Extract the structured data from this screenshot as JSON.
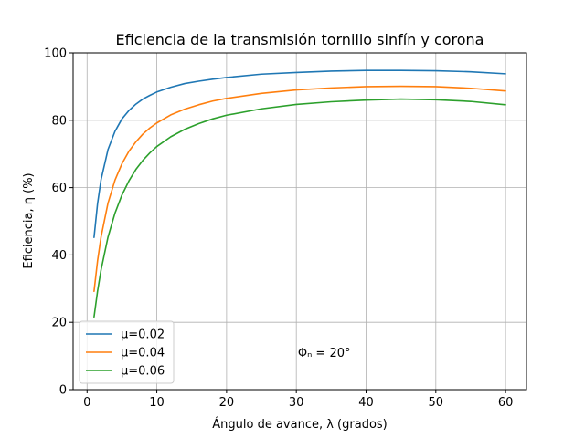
{
  "chart_data": {
    "type": "line",
    "title": "Eficiencia de la transmisión tornillo sinfín y corona",
    "xlabel": "Ángulo de avance, λ (grados)",
    "ylabel": "Eficiencia, η (%)",
    "xlim": [
      -2.0,
      63.0
    ],
    "ylim": [
      0,
      100
    ],
    "xticks": [
      0,
      10,
      20,
      30,
      40,
      50,
      60
    ],
    "yticks": [
      0,
      20,
      40,
      60,
      80,
      100
    ],
    "grid": true,
    "legend_position": "lower-left",
    "annotation": {
      "text": "Φₙ = 20°",
      "x": 34,
      "y": 11
    },
    "x": [
      1,
      1.5,
      2,
      3,
      4,
      5,
      6,
      7,
      8,
      9,
      10,
      12,
      14,
      16,
      18,
      20,
      25,
      30,
      35,
      40,
      45,
      50,
      55,
      60
    ],
    "series": [
      {
        "name": "μ=0.02",
        "color": "#1f77b4",
        "values": [
          45.2,
          55.2,
          62.3,
          71.3,
          76.7,
          80.4,
          82.9,
          84.8,
          86.3,
          87.4,
          88.4,
          89.8,
          90.9,
          91.6,
          92.2,
          92.7,
          93.7,
          94.2,
          94.6,
          94.8,
          94.8,
          94.7,
          94.4,
          93.8
        ]
      },
      {
        "name": "μ=0.04",
        "color": "#ff7f0e",
        "values": [
          29.2,
          38.2,
          45.3,
          55.4,
          62.2,
          67.1,
          70.8,
          73.6,
          75.9,
          77.7,
          79.2,
          81.6,
          83.3,
          84.6,
          85.7,
          86.5,
          88.0,
          89.0,
          89.6,
          90.0,
          90.1,
          90.0,
          89.5,
          88.7
        ]
      },
      {
        "name": "μ=0.06",
        "color": "#2ca02c",
        "values": [
          21.6,
          29.2,
          35.5,
          45.3,
          52.4,
          57.8,
          62.0,
          65.4,
          68.1,
          70.3,
          72.2,
          75.1,
          77.3,
          79.0,
          80.4,
          81.5,
          83.4,
          84.7,
          85.5,
          86.0,
          86.3,
          86.1,
          85.6,
          84.6
        ]
      }
    ]
  }
}
